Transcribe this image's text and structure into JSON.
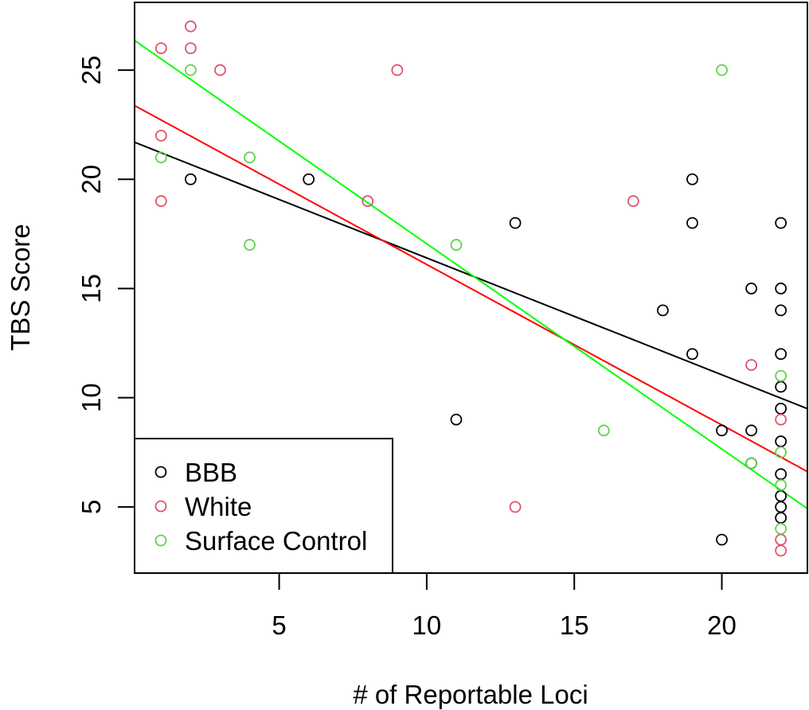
{
  "chart_data": {
    "type": "scatter",
    "title": "",
    "xlabel": "# of Reportable Loci",
    "ylabel": "TBS Score",
    "xlim": [
      0.1,
      22.9
    ],
    "ylim": [
      1.97,
      28.1
    ],
    "x_ticks": [
      5,
      10,
      15,
      20
    ],
    "y_ticks": [
      5,
      10,
      15,
      20,
      25
    ],
    "grid": false,
    "legend_position": "bottom-left",
    "series": [
      {
        "name": "BBB",
        "color": "#000000",
        "marker": "open-circle",
        "points": [
          [
            2,
            20
          ],
          [
            6,
            20
          ],
          [
            11,
            9
          ],
          [
            13,
            18
          ],
          [
            18,
            14
          ],
          [
            19,
            20
          ],
          [
            19,
            18
          ],
          [
            19,
            12
          ],
          [
            20,
            8.5
          ],
          [
            20,
            3.5
          ],
          [
            21,
            15
          ],
          [
            21,
            8.5
          ],
          [
            21,
            7
          ],
          [
            22,
            18
          ],
          [
            22,
            15
          ],
          [
            22,
            14
          ],
          [
            22,
            12
          ],
          [
            22,
            10.5
          ],
          [
            22,
            9.5
          ],
          [
            22,
            8
          ],
          [
            22,
            6.5
          ],
          [
            22,
            5.5
          ],
          [
            22,
            5
          ],
          [
            22,
            4.5
          ]
        ],
        "fit": {
          "intercept": 21.75,
          "slope": -0.535
        }
      },
      {
        "name": "White",
        "color": "#DF536B",
        "line_color": "#FF0000",
        "marker": "open-circle",
        "points": [
          [
            1,
            26
          ],
          [
            1,
            22
          ],
          [
            1,
            19
          ],
          [
            2,
            27
          ],
          [
            2,
            26
          ],
          [
            3,
            25
          ],
          [
            8,
            19
          ],
          [
            9,
            25
          ],
          [
            13,
            5
          ],
          [
            17,
            19
          ],
          [
            21,
            11.5
          ],
          [
            22,
            9
          ],
          [
            22,
            3.5
          ],
          [
            22,
            3
          ]
        ],
        "fit": {
          "intercept": 23.45,
          "slope": -0.735
        }
      },
      {
        "name": "Surface Control",
        "color": "#61D04F",
        "line_color": "#00FF00",
        "marker": "open-circle",
        "points": [
          [
            1,
            21
          ],
          [
            2,
            25
          ],
          [
            4,
            21
          ],
          [
            4,
            17
          ],
          [
            11,
            17
          ],
          [
            16,
            8.5
          ],
          [
            20,
            25
          ],
          [
            21,
            7
          ],
          [
            22,
            11
          ],
          [
            22,
            7.5
          ],
          [
            22,
            6
          ],
          [
            22,
            4
          ]
        ],
        "fit": {
          "intercept": 26.45,
          "slope": -0.94
        }
      }
    ]
  }
}
